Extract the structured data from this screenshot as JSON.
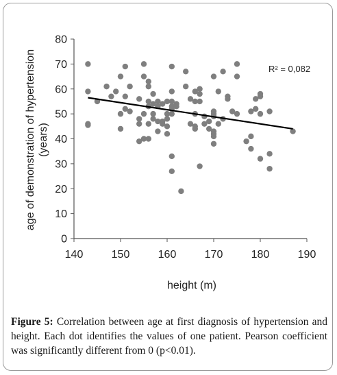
{
  "chart_data": {
    "type": "scatter",
    "xlabel": "height (m)",
    "ylabel_line1": "age of demonstration of hypertension",
    "ylabel_line2": "(years)",
    "xlim": [
      140,
      190
    ],
    "ylim": [
      0,
      80
    ],
    "xticks": [
      140,
      150,
      160,
      170,
      180,
      190
    ],
    "yticks": [
      0,
      10,
      20,
      30,
      40,
      50,
      60,
      70,
      80
    ],
    "grid": false,
    "annotation": "R² = 0,082",
    "marker_color": "#7f7f7f",
    "trend_color": "#000000",
    "trendline": {
      "x": [
        143,
        187
      ],
      "y": [
        56.5,
        44.0
      ]
    },
    "points": [
      [
        143,
        70
      ],
      [
        143,
        59
      ],
      [
        143,
        46
      ],
      [
        143,
        45.5
      ],
      [
        145,
        55
      ],
      [
        147,
        61
      ],
      [
        148,
        57
      ],
      [
        149,
        59
      ],
      [
        150,
        65
      ],
      [
        150,
        50
      ],
      [
        150,
        44
      ],
      [
        151,
        69
      ],
      [
        151,
        52
      ],
      [
        151,
        57
      ],
      [
        152,
        61
      ],
      [
        152,
        51
      ],
      [
        154,
        56
      ],
      [
        154,
        48
      ],
      [
        154,
        46
      ],
      [
        154,
        39
      ],
      [
        155,
        70
      ],
      [
        155,
        65
      ],
      [
        155,
        50
      ],
      [
        155,
        40
      ],
      [
        156,
        63
      ],
      [
        156,
        61
      ],
      [
        156,
        55
      ],
      [
        156,
        53
      ],
      [
        156,
        46
      ],
      [
        156,
        40
      ],
      [
        157,
        58
      ],
      [
        157,
        54
      ],
      [
        157,
        50
      ],
      [
        157,
        48
      ],
      [
        158,
        55
      ],
      [
        158,
        53
      ],
      [
        158,
        47
      ],
      [
        158,
        43
      ],
      [
        159,
        54
      ],
      [
        159,
        47
      ],
      [
        159,
        46
      ],
      [
        160,
        55
      ],
      [
        160,
        50
      ],
      [
        160,
        48
      ],
      [
        160,
        45
      ],
      [
        160,
        42
      ],
      [
        161,
        69
      ],
      [
        161,
        59
      ],
      [
        161,
        55
      ],
      [
        161,
        53
      ],
      [
        161,
        52
      ],
      [
        161,
        50
      ],
      [
        161,
        33
      ],
      [
        161,
        27
      ],
      [
        162,
        54
      ],
      [
        162,
        53
      ],
      [
        163,
        19
      ],
      [
        164,
        67
      ],
      [
        164,
        61
      ],
      [
        165,
        56
      ],
      [
        165,
        46
      ],
      [
        166,
        59
      ],
      [
        166,
        55
      ],
      [
        166,
        50
      ],
      [
        166,
        45
      ],
      [
        166,
        44
      ],
      [
        167,
        60
      ],
      [
        167,
        58
      ],
      [
        167,
        55
      ],
      [
        167,
        29
      ],
      [
        168,
        49
      ],
      [
        168,
        46
      ],
      [
        169,
        47
      ],
      [
        169,
        44
      ],
      [
        170,
        65
      ],
      [
        170,
        51
      ],
      [
        170,
        50
      ],
      [
        170,
        49
      ],
      [
        170,
        43
      ],
      [
        170,
        42
      ],
      [
        170,
        41
      ],
      [
        170,
        38
      ],
      [
        171,
        59
      ],
      [
        171,
        46
      ],
      [
        172,
        67
      ],
      [
        172,
        48
      ],
      [
        173,
        57
      ],
      [
        173,
        56
      ],
      [
        174,
        51
      ],
      [
        175,
        70
      ],
      [
        175,
        65
      ],
      [
        175,
        50
      ],
      [
        177,
        39
      ],
      [
        178,
        51
      ],
      [
        178,
        41
      ],
      [
        178,
        36
      ],
      [
        179,
        56
      ],
      [
        179,
        52
      ],
      [
        180,
        58
      ],
      [
        180,
        57
      ],
      [
        180,
        50
      ],
      [
        180,
        32
      ],
      [
        182,
        51
      ],
      [
        182,
        34
      ],
      [
        182,
        28
      ],
      [
        187,
        43
      ]
    ]
  },
  "caption": {
    "label": "Figure 5:",
    "text": " Correlation between age at first diagnosis of hypertension and height. Each dot identifies the values of one patient. Pearson coefficient was significantly different from 0 (p<0.01)."
  }
}
